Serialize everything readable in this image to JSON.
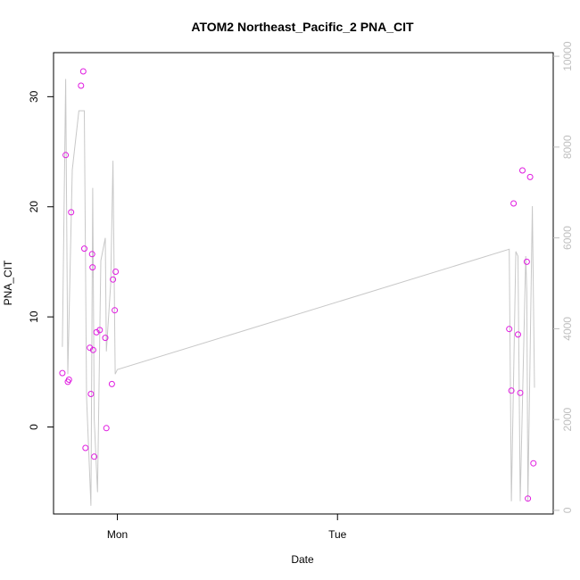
{
  "chart_data": {
    "type": "scatter",
    "title": "ATOM2 Northeast_Pacific_2 PNA_CIT",
    "xlabel": "Date",
    "ylabel": "PNA_CIT",
    "x_ticks": [
      {
        "value": 0.0,
        "label": "Mon"
      },
      {
        "value": 1.0,
        "label": "Tue"
      }
    ],
    "xlim": [
      -0.29,
      1.98
    ],
    "ylim": [
      -7.9,
      34.0
    ],
    "y_ticks": [
      0,
      10,
      20,
      30
    ],
    "right_axis": {
      "ylim": [
        -80,
        10080
      ],
      "ticks": [
        0,
        2000,
        4000,
        6000,
        8000,
        10000
      ],
      "color": "#bfbfbf"
    },
    "grid": false,
    "colors": {
      "points": "#e01be0",
      "line": "#c8c8c8"
    },
    "series": [
      {
        "kind": "points",
        "axis": "left",
        "points": [
          {
            "x": -0.25,
            "y": 4.9
          },
          {
            "x": -0.235,
            "y": 24.7
          },
          {
            "x": -0.225,
            "y": 4.1
          },
          {
            "x": -0.22,
            "y": 4.3
          },
          {
            "x": -0.21,
            "y": 19.5
          },
          {
            "x": -0.165,
            "y": 31.0
          },
          {
            "x": -0.155,
            "y": 32.3
          },
          {
            "x": -0.15,
            "y": 16.2
          },
          {
            "x": -0.145,
            "y": -1.9
          },
          {
            "x": -0.125,
            "y": 7.2
          },
          {
            "x": -0.12,
            "y": 3.0
          },
          {
            "x": -0.115,
            "y": 15.7
          },
          {
            "x": -0.113,
            "y": 14.5
          },
          {
            "x": -0.11,
            "y": 7.0
          },
          {
            "x": -0.105,
            "y": -2.7
          },
          {
            "x": -0.095,
            "y": 8.6
          },
          {
            "x": -0.08,
            "y": 8.8
          },
          {
            "x": -0.055,
            "y": 8.1
          },
          {
            "x": -0.05,
            "y": -0.1
          },
          {
            "x": -0.025,
            "y": 3.9
          },
          {
            "x": -0.02,
            "y": 13.4
          },
          {
            "x": -0.012,
            "y": 10.6
          },
          {
            "x": -0.008,
            "y": 14.1
          },
          {
            "x": 1.78,
            "y": 8.9
          },
          {
            "x": 1.79,
            "y": 3.3
          },
          {
            "x": 1.8,
            "y": 20.3
          },
          {
            "x": 1.82,
            "y": 8.4
          },
          {
            "x": 1.83,
            "y": 3.1
          },
          {
            "x": 1.84,
            "y": 23.3
          },
          {
            "x": 1.86,
            "y": 15.0
          },
          {
            "x": 1.865,
            "y": -6.5
          },
          {
            "x": 1.875,
            "y": 22.7
          },
          {
            "x": 1.89,
            "y": -3.3
          }
        ]
      },
      {
        "kind": "line",
        "axis": "right",
        "points": [
          {
            "x": -0.25,
            "y": 3600
          },
          {
            "x": -0.235,
            "y": 9500
          },
          {
            "x": -0.225,
            "y": 3000
          },
          {
            "x": -0.205,
            "y": 7500
          },
          {
            "x": -0.175,
            "y": 8800
          },
          {
            "x": -0.165,
            "y": 8800
          },
          {
            "x": -0.15,
            "y": 8800
          },
          {
            "x": -0.14,
            "y": 2500
          },
          {
            "x": -0.12,
            "y": 100
          },
          {
            "x": -0.112,
            "y": 7100
          },
          {
            "x": -0.105,
            "y": 2000
          },
          {
            "x": -0.09,
            "y": 400
          },
          {
            "x": -0.075,
            "y": 5500
          },
          {
            "x": -0.055,
            "y": 6000
          },
          {
            "x": -0.05,
            "y": 3500
          },
          {
            "x": -0.03,
            "y": 5000
          },
          {
            "x": -0.02,
            "y": 7700
          },
          {
            "x": -0.01,
            "y": 3000
          },
          {
            "x": 0.0,
            "y": 3100
          },
          {
            "x": 1.78,
            "y": 5750
          },
          {
            "x": 1.79,
            "y": 200
          },
          {
            "x": 1.81,
            "y": 5700
          },
          {
            "x": 1.82,
            "y": 5600
          },
          {
            "x": 1.83,
            "y": 200
          },
          {
            "x": 1.855,
            "y": 5600
          },
          {
            "x": 1.86,
            "y": 4800
          },
          {
            "x": 1.865,
            "y": 200
          },
          {
            "x": 1.885,
            "y": 6700
          },
          {
            "x": 1.895,
            "y": 2700
          }
        ]
      }
    ]
  }
}
